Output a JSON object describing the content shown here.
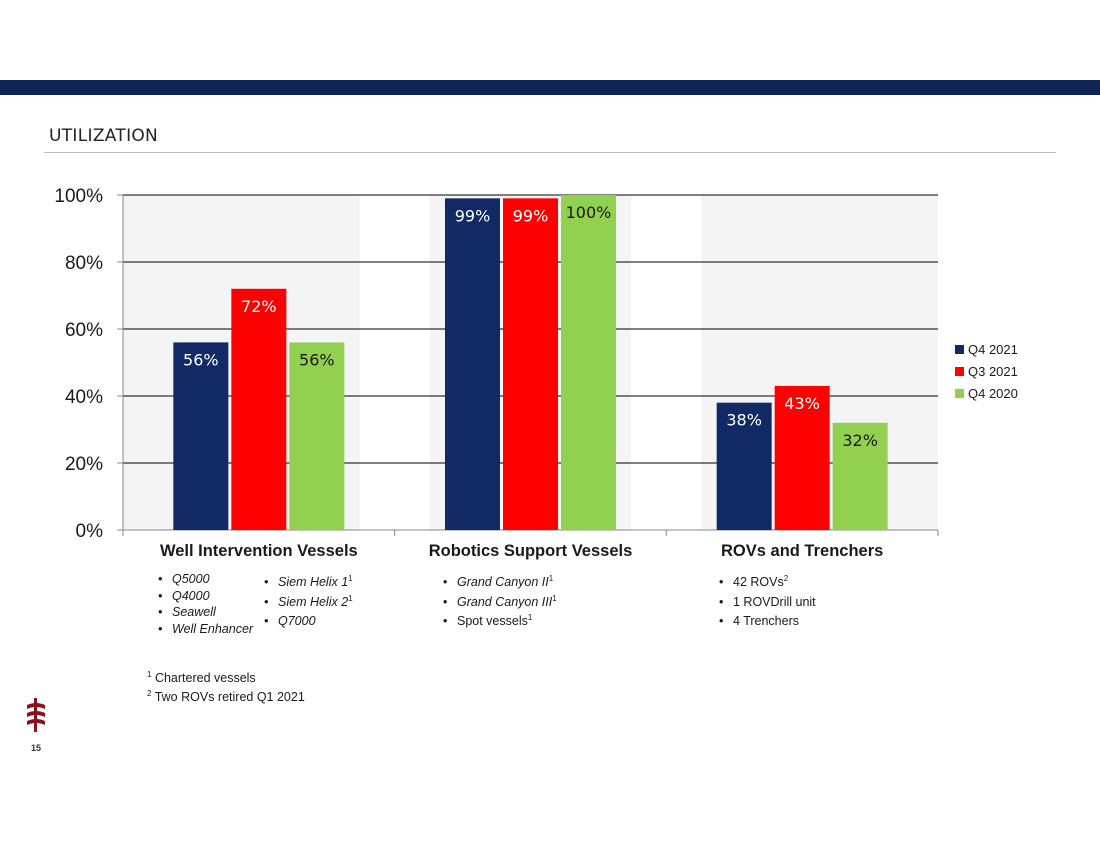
{
  "header": {
    "title": "UTILIZATION"
  },
  "colors": {
    "band": "#0f2557",
    "q4_2021": "#112a66",
    "q3_2021": "#ff0000",
    "q4_2020": "#92d050"
  },
  "chart_data": {
    "type": "bar",
    "categories": [
      "Well Intervention Vessels",
      "Robotics Support Vessels",
      "ROVs and Trenchers"
    ],
    "series": [
      {
        "name": "Q4 2021",
        "values": [
          56,
          99,
          38
        ],
        "labels": [
          "56%",
          "99%",
          "38%"
        ]
      },
      {
        "name": "Q3 2021",
        "values": [
          72,
          99,
          43
        ],
        "labels": [
          "72%",
          "99%",
          "43%"
        ]
      },
      {
        "name": "Q4 2020",
        "values": [
          56,
          100,
          32
        ],
        "labels": [
          "56%",
          "100%",
          "32%"
        ]
      }
    ],
    "yticks": [
      "0%",
      "20%",
      "40%",
      "60%",
      "80%",
      "100%"
    ],
    "ylim": [
      0,
      100
    ],
    "grid": true,
    "legend_position": "right"
  },
  "category_details": {
    "well_col1": [
      "Q5000",
      "Q4000",
      "Seawell",
      "Well Enhancer"
    ],
    "well_col2": [
      {
        "text": "Siem Helix 1",
        "sup": "1"
      },
      {
        "text": "Siem Helix 2",
        "sup": "1"
      },
      {
        "text": "Q7000",
        "sup": ""
      }
    ],
    "robotics": [
      {
        "text": "Grand Canyon II",
        "sup": "1"
      },
      {
        "text": "Grand Canyon III",
        "sup": "1"
      },
      {
        "text": "Spot vessels",
        "sup": "1"
      }
    ],
    "rovs": [
      {
        "text": "42 ROVs",
        "sup": "2"
      },
      {
        "text": "1 ROVDrill unit",
        "sup": ""
      },
      {
        "text": "4 Trenchers",
        "sup": ""
      }
    ]
  },
  "footnotes": [
    {
      "mark": "1",
      "text": "Chartered vessels"
    },
    {
      "mark": "2",
      "text": "Two ROVs retired Q1 2021"
    }
  ],
  "page_number": "15"
}
